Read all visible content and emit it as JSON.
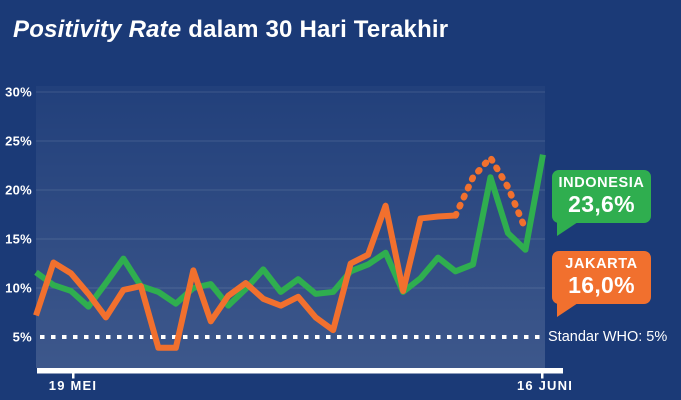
{
  "title": {
    "italic": "Positivity Rate",
    "rest": " dalam 30 Hari Terakhir"
  },
  "colors": {
    "background": "#1B3A77",
    "indonesia_green": "#2FAE4F",
    "jakarta_orange": "#F1702E",
    "text_white": "#FFFFFF"
  },
  "chart_data": {
    "type": "line",
    "title": "Positivity Rate dalam 30 Hari Terakhir",
    "days": 30,
    "grid": "horizontal",
    "x_axis": {
      "start_label": "19 MEI",
      "end_label": "16 JUNI"
    },
    "y_axis": {
      "unit": "%",
      "tick_labels": [
        "30%",
        "25%",
        "20%",
        "15%",
        "10%",
        "5%"
      ],
      "ticks_percent": [
        30,
        25,
        20,
        15,
        10,
        5
      ],
      "range": [
        2.5,
        32
      ]
    },
    "reference_line": {
      "label": "Standar WHO: 5%",
      "value": 5,
      "style": "dotted",
      "color": "#FFFFFF"
    },
    "series": [
      {
        "name": "INDONESIA",
        "color": "#2FAE4F",
        "latest_label": "23,6%",
        "latest_value": 23.6,
        "values": [
          11.6,
          10.3,
          9.7,
          8.1,
          10.5,
          13.0,
          10.2,
          9.6,
          8.4,
          10.0,
          10.4,
          8.2,
          9.9,
          11.9,
          9.6,
          10.9,
          9.4,
          9.6,
          11.7,
          12.4,
          13.6,
          9.6,
          11.0,
          13.1,
          11.7,
          12.4,
          21.3,
          15.6,
          13.9,
          23.6
        ]
      },
      {
        "name": "JAKARTA",
        "color": "#F1702E",
        "latest_label": "16,0%",
        "latest_value": 16.0,
        "dashed_from_index": 24,
        "values": [
          7.2,
          12.6,
          11.5,
          9.4,
          7.0,
          9.8,
          10.2,
          3.9,
          3.9,
          11.8,
          6.6,
          9.2,
          10.5,
          8.9,
          8.2,
          9.1,
          7.0,
          5.7,
          12.5,
          13.4,
          18.4,
          9.7,
          17.1,
          17.3,
          17.4,
          21.3,
          23.3,
          20.3,
          16.0,
          null
        ]
      }
    ]
  }
}
